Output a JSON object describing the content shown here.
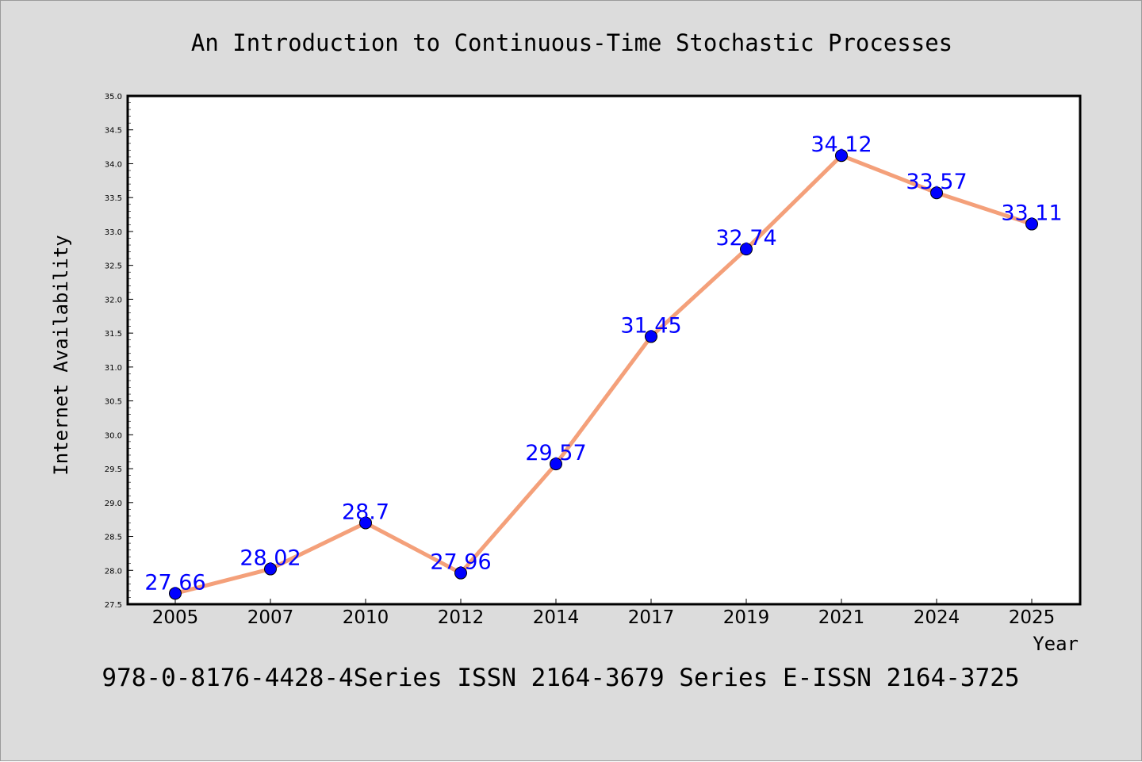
{
  "chart_data": {
    "type": "line",
    "title": "An Introduction to Continuous-Time Stochastic Processes",
    "xlabel": "Year",
    "ylabel": "Internet Availability",
    "categories": [
      "2005",
      "2007",
      "2010",
      "2012",
      "2014",
      "2017",
      "2019",
      "2021",
      "2024",
      "2025"
    ],
    "series": [
      {
        "values": [
          27.66,
          28.02,
          28.7,
          27.96,
          29.57,
          31.45,
          32.74,
          34.12,
          33.57,
          33.11
        ],
        "labels": [
          "27.66",
          "28.02",
          "28.7",
          "27.96",
          "29.57",
          "31.45",
          "32.74",
          "34.12",
          "33.57",
          "33.11"
        ],
        "line_color": "#f4a07a",
        "marker_color": "#0000ff"
      }
    ],
    "ylim": [
      27.5,
      35.0
    ],
    "yticks": [
      "27.5",
      "28.0",
      "28.5",
      "29.0",
      "29.5",
      "30.0",
      "30.5",
      "31.0",
      "31.5",
      "32.0",
      "32.5",
      "33.0",
      "33.5",
      "34.0",
      "34.5",
      "35.0"
    ],
    "grid": false,
    "legend": "none",
    "footer": "978-0-8176-4428-4Series ISSN 2164-3679 Series E-ISSN 2164-3725",
    "colors": {
      "background": "#dcdcdc",
      "plot_area": "#ffffff",
      "label_text": "#0000ff"
    }
  }
}
